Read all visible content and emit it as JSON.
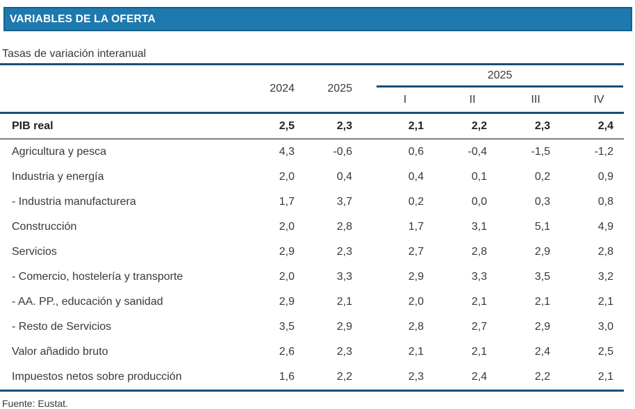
{
  "title_bar": {
    "title": "VARIABLES DE LA OFERTA"
  },
  "subtitle": "Tasas de variación interanual",
  "table": {
    "col_headers": {
      "year1": "2024",
      "year2": "2025"
    },
    "quarter_group": {
      "label": "2025",
      "q1": "I",
      "q2": "II",
      "q3": "III",
      "q4": "IV"
    },
    "rows": [
      {
        "label": "PIB real",
        "values": [
          "2,5",
          "2,3",
          "2,1",
          "2,2",
          "2,3",
          "2,4"
        ]
      },
      {
        "label": "Agricultura y pesca",
        "values": [
          "4,3",
          "-0,6",
          "0,6",
          "-0,4",
          "-1,5",
          "-1,2"
        ]
      },
      {
        "label": "Industria y energía",
        "values": [
          "2,0",
          "0,4",
          "0,4",
          "0,1",
          "0,2",
          "0,9"
        ]
      },
      {
        "label": "- Industria manufacturera",
        "values": [
          "1,7",
          "3,7",
          "0,2",
          "0,0",
          "0,3",
          "0,8"
        ]
      },
      {
        "label": "Construcción",
        "values": [
          "2,0",
          "2,8",
          "1,7",
          "3,1",
          "5,1",
          "4,9"
        ]
      },
      {
        "label": "Servicios",
        "values": [
          "2,9",
          "2,3",
          "2,7",
          "2,8",
          "2,9",
          "2,8"
        ]
      },
      {
        "label": "- Comercio, hostelería y transporte",
        "values": [
          "2,0",
          "3,3",
          "2,9",
          "3,3",
          "3,5",
          "3,2"
        ]
      },
      {
        "label": "- AA. PP., educación y sanidad",
        "values": [
          "2,9",
          "2,1",
          "2,0",
          "2,1",
          "2,1",
          "2,1"
        ]
      },
      {
        "label": "- Resto de Servicios",
        "values": [
          "3,5",
          "2,9",
          "2,8",
          "2,7",
          "2,9",
          "3,0"
        ]
      },
      {
        "label": "Valor añadido bruto",
        "values": [
          "2,6",
          "2,3",
          "2,1",
          "2,1",
          "2,4",
          "2,5"
        ]
      },
      {
        "label": "Impuestos netos sobre producción",
        "values": [
          "1,6",
          "2,2",
          "2,3",
          "2,4",
          "2,2",
          "2,1"
        ]
      }
    ]
  },
  "source": "Fuente: Eustat.",
  "colors": {
    "bar_fill": "#1E79AE",
    "bar_border": "#14608C",
    "rule_blue": "#114F79",
    "rule_gray": "#7F7F7F",
    "text": "#383838"
  }
}
